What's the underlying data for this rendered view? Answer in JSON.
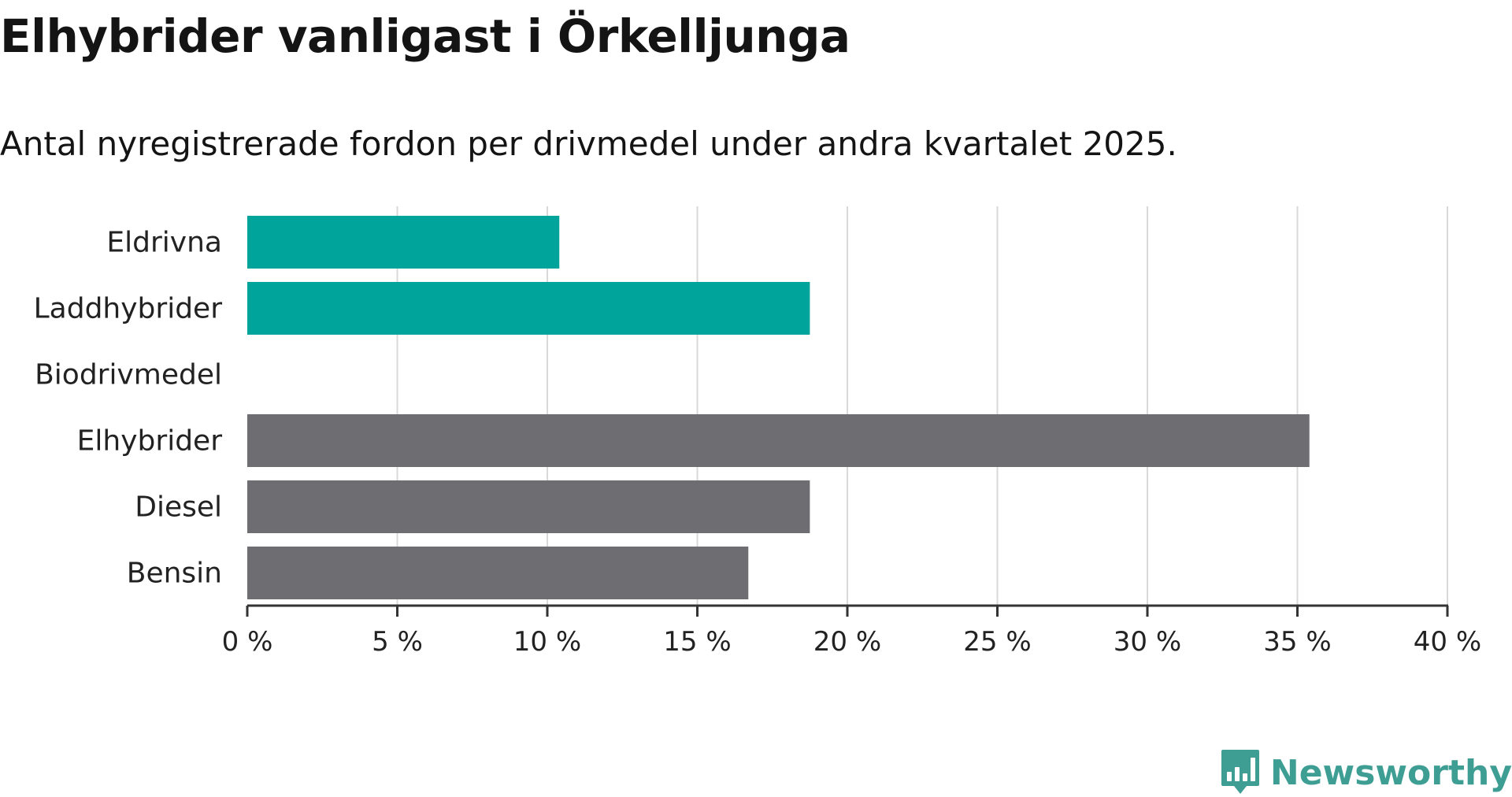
{
  "chart_data": {
    "type": "bar",
    "orientation": "horizontal",
    "title": "Elhybrider vanligast i Örkelljunga",
    "subtitle": "Antal nyregistrerade fordon per drivmedel under andra kvartalet 2025.",
    "categories": [
      "Eldrivna",
      "Laddhybrider",
      "Biodrivmedel",
      "Elhybrider",
      "Diesel",
      "Bensin"
    ],
    "values": [
      10.4,
      18.75,
      0,
      35.4,
      18.75,
      16.7
    ],
    "colors": [
      "#00a49a",
      "#00a49a",
      "#00a49a",
      "#6e6d72",
      "#6e6d72",
      "#6e6d72"
    ],
    "xlim": [
      0,
      40
    ],
    "xticks": [
      0,
      5,
      10,
      15,
      20,
      25,
      30,
      35,
      40
    ],
    "xtick_labels": [
      "0 %",
      "5 %",
      "10 %",
      "15 %",
      "20 %",
      "25 %",
      "30 %",
      "35 %",
      "40 %"
    ],
    "grid": true,
    "legend": "none"
  },
  "brand": {
    "name": "Newsworthy",
    "color": "#3e9e94",
    "icon": "newsworthy-logo-icon"
  }
}
